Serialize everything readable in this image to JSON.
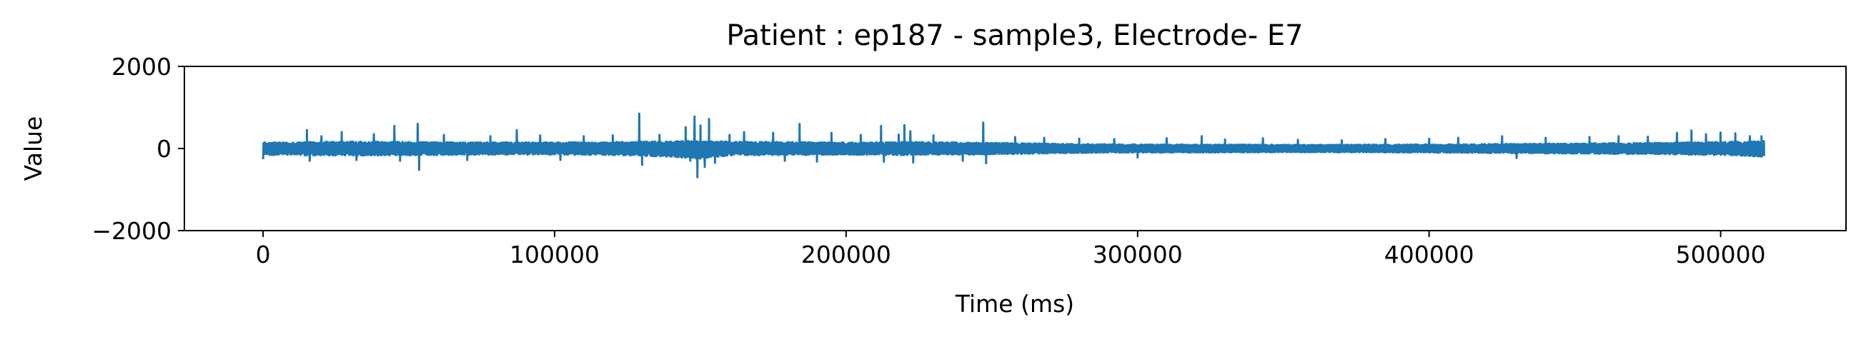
{
  "chart_data": {
    "type": "line",
    "title": "Patient : ep187 - sample3, Electrode- E7",
    "xlabel": "Time (ms)",
    "ylabel": "Value",
    "xlim": [
      -27000,
      543000
    ],
    "ylim": [
      -2000,
      2000
    ],
    "x_ticks": [
      0,
      100000,
      200000,
      300000,
      400000,
      500000
    ],
    "x_tick_labels": [
      "0",
      "100000",
      "200000",
      "300000",
      "400000",
      "500000"
    ],
    "y_ticks": [
      -2000,
      0,
      2000
    ],
    "y_tick_labels": [
      "−2000",
      "0",
      "2000"
    ],
    "grid": false,
    "legend": "none",
    "series": [
      {
        "color": "#1f77b4",
        "x_start": 0,
        "x_end": 515000,
        "envelope_x": [
          0,
          10000,
          20000,
          40000,
          60000,
          80000,
          100000,
          120000,
          140000,
          150000,
          160000,
          180000,
          200000,
          220000,
          240000,
          260000,
          280000,
          300000,
          320000,
          340000,
          360000,
          380000,
          400000,
          420000,
          440000,
          460000,
          480000,
          500000,
          515000
        ],
        "envelope_max": [
          150,
          150,
          170,
          170,
          160,
          150,
          150,
          160,
          180,
          190,
          170,
          160,
          150,
          160,
          150,
          130,
          110,
          100,
          100,
          95,
          90,
          95,
          100,
          110,
          120,
          130,
          140,
          160,
          180
        ],
        "envelope_min": [
          -160,
          -160,
          -170,
          -170,
          -160,
          -150,
          -150,
          -160,
          -200,
          -260,
          -170,
          -160,
          -150,
          -160,
          -150,
          -130,
          -110,
          -100,
          -100,
          -95,
          -90,
          -95,
          -100,
          -110,
          -120,
          -130,
          -140,
          -160,
          -200
        ],
        "spikes": [
          {
            "x": 0,
            "y": -260
          },
          {
            "x": 15000,
            "y": 450
          },
          {
            "x": 16000,
            "y": -300
          },
          {
            "x": 20000,
            "y": 300
          },
          {
            "x": 27000,
            "y": 400
          },
          {
            "x": 32000,
            "y": -280
          },
          {
            "x": 38000,
            "y": 350
          },
          {
            "x": 45000,
            "y": 550
          },
          {
            "x": 47000,
            "y": -300
          },
          {
            "x": 53000,
            "y": 600
          },
          {
            "x": 53500,
            "y": -520
          },
          {
            "x": 62000,
            "y": 330
          },
          {
            "x": 70000,
            "y": -280
          },
          {
            "x": 78000,
            "y": 300
          },
          {
            "x": 87000,
            "y": 450
          },
          {
            "x": 95000,
            "y": 320
          },
          {
            "x": 102000,
            "y": -280
          },
          {
            "x": 110000,
            "y": 300
          },
          {
            "x": 120000,
            "y": 320
          },
          {
            "x": 129000,
            "y": 850
          },
          {
            "x": 130000,
            "y": -400
          },
          {
            "x": 136000,
            "y": 330
          },
          {
            "x": 145000,
            "y": 520
          },
          {
            "x": 146500,
            "y": -300
          },
          {
            "x": 148000,
            "y": 780
          },
          {
            "x": 149000,
            "y": -700
          },
          {
            "x": 150000,
            "y": 560
          },
          {
            "x": 151500,
            "y": -450
          },
          {
            "x": 153000,
            "y": 720
          },
          {
            "x": 155000,
            "y": -350
          },
          {
            "x": 160000,
            "y": 330
          },
          {
            "x": 165000,
            "y": 400
          },
          {
            "x": 175000,
            "y": 380
          },
          {
            "x": 179000,
            "y": -300
          },
          {
            "x": 184000,
            "y": 600
          },
          {
            "x": 190000,
            "y": -320
          },
          {
            "x": 195000,
            "y": 380
          },
          {
            "x": 205000,
            "y": 330
          },
          {
            "x": 212000,
            "y": 550
          },
          {
            "x": 213000,
            "y": -320
          },
          {
            "x": 218000,
            "y": 340
          },
          {
            "x": 220000,
            "y": 570
          },
          {
            "x": 222000,
            "y": 420
          },
          {
            "x": 223000,
            "y": -340
          },
          {
            "x": 230000,
            "y": 320
          },
          {
            "x": 240000,
            "y": -300
          },
          {
            "x": 247000,
            "y": 630
          },
          {
            "x": 248000,
            "y": -360
          },
          {
            "x": 258000,
            "y": 280
          },
          {
            "x": 268000,
            "y": 260
          },
          {
            "x": 280000,
            "y": 240
          },
          {
            "x": 292000,
            "y": 230
          },
          {
            "x": 300000,
            "y": -220
          },
          {
            "x": 310000,
            "y": 250
          },
          {
            "x": 322000,
            "y": 300
          },
          {
            "x": 330000,
            "y": 220
          },
          {
            "x": 343000,
            "y": 250
          },
          {
            "x": 355000,
            "y": 210
          },
          {
            "x": 370000,
            "y": 200
          },
          {
            "x": 385000,
            "y": 230
          },
          {
            "x": 400000,
            "y": 240
          },
          {
            "x": 410000,
            "y": 260
          },
          {
            "x": 425000,
            "y": 300
          },
          {
            "x": 430000,
            "y": -230
          },
          {
            "x": 440000,
            "y": 260
          },
          {
            "x": 455000,
            "y": 280
          },
          {
            "x": 465000,
            "y": 300
          },
          {
            "x": 475000,
            "y": 290
          },
          {
            "x": 485000,
            "y": 380
          },
          {
            "x": 490000,
            "y": 440
          },
          {
            "x": 495000,
            "y": 350
          },
          {
            "x": 500000,
            "y": 390
          },
          {
            "x": 505000,
            "y": 370
          },
          {
            "x": 510000,
            "y": 300
          },
          {
            "x": 514000,
            "y": 300
          },
          {
            "x": 515000,
            "y": -580
          }
        ]
      }
    ]
  }
}
